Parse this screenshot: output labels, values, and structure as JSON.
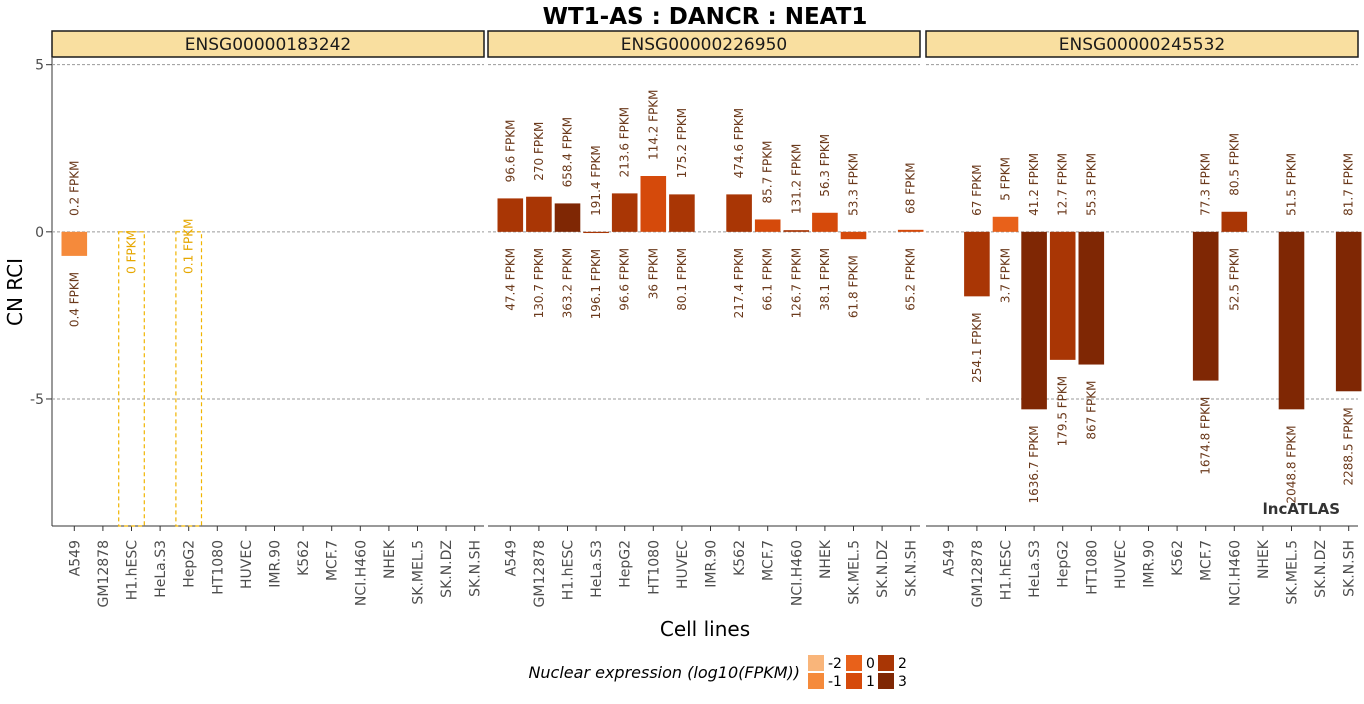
{
  "chart_data": {
    "type": "bar",
    "title": "WT1-AS : DANCR : NEAT1",
    "xlabel": "Cell lines",
    "ylabel": "CN RCI",
    "ylim": [
      -8.8,
      5.2
    ],
    "yticks": [
      5,
      0,
      -5
    ],
    "grid": "dashed horizontal at y ticks",
    "categories": [
      "A549",
      "GM12878",
      "H1.hESC",
      "HeLa.S3",
      "HepG2",
      "HT1080",
      "HUVEC",
      "IMR.90",
      "K562",
      "MCF.7",
      "NCI.H460",
      "NHEK",
      "SK.MEL.5",
      "SK.N.DZ",
      "SK.N.SH"
    ],
    "color_scale": {
      "-2": "#f9b57a",
      "-1": "#f58a3b",
      "0": "#e8611a",
      "1": "#d54a0b",
      "2": "#a93605",
      "3": "#7f2704"
    },
    "facets": [
      {
        "label": "ENSG00000183242",
        "bars": [
          {
            "category": "A549",
            "value": -0.72,
            "top_label": "0.2 FPKM",
            "bottom_label": "0.4 FPKM",
            "level": -1,
            "style": "solid"
          },
          {
            "category": "H1.hESC",
            "value": -8.8,
            "top_label": "0 FPKM",
            "level": -2,
            "style": "dashed"
          },
          {
            "category": "HepG2",
            "value": -8.8,
            "top_label": "0.1 FPKM",
            "level": -2,
            "style": "dashed"
          }
        ]
      },
      {
        "label": "ENSG00000226950",
        "bars": [
          {
            "category": "A549",
            "value": 1.0,
            "top_label": "96.6 FPKM",
            "bottom_label": "47.4 FPKM",
            "level": 2,
            "style": "solid"
          },
          {
            "category": "GM12878",
            "value": 1.05,
            "top_label": "270 FPKM",
            "bottom_label": "130.7 FPKM",
            "level": 2,
            "style": "solid"
          },
          {
            "category": "H1.hESC",
            "value": 0.85,
            "top_label": "658.4 FPKM",
            "bottom_label": "363.2 FPKM",
            "level": 3,
            "style": "solid"
          },
          {
            "category": "HeLa.S3",
            "value": -0.03,
            "top_label": "191.4 FPKM",
            "bottom_label": "196.1 FPKM",
            "level": 2,
            "style": "solid"
          },
          {
            "category": "HepG2",
            "value": 1.15,
            "top_label": "213.6 FPKM",
            "bottom_label": "96.6 FPKM",
            "level": 2,
            "style": "solid"
          },
          {
            "category": "HT1080",
            "value": 1.67,
            "top_label": "114.2 FPKM",
            "bottom_label": "36 FPKM",
            "level": 1,
            "style": "solid"
          },
          {
            "category": "HUVEC",
            "value": 1.12,
            "top_label": "175.2 FPKM",
            "bottom_label": "80.1 FPKM",
            "level": 2,
            "style": "solid"
          },
          {
            "category": "K562",
            "value": 1.12,
            "top_label": "474.6 FPKM",
            "bottom_label": "217.4 FPKM",
            "level": 2,
            "style": "solid"
          },
          {
            "category": "MCF.7",
            "value": 0.37,
            "top_label": "85.7 FPKM",
            "bottom_label": "66.1 FPKM",
            "level": 1,
            "style": "solid"
          },
          {
            "category": "NCI.H460",
            "value": 0.05,
            "top_label": "131.2 FPKM",
            "bottom_label": "126.7 FPKM",
            "level": 2,
            "style": "solid"
          },
          {
            "category": "NHEK",
            "value": 0.57,
            "top_label": "56.3 FPKM",
            "bottom_label": "38.1 FPKM",
            "level": 1,
            "style": "solid"
          },
          {
            "category": "SK.MEL.5",
            "value": -0.22,
            "top_label": "53.3 FPKM",
            "bottom_label": "61.8 FPKM",
            "level": 1,
            "style": "solid"
          },
          {
            "category": "SK.N.SH",
            "value": 0.06,
            "top_label": "68 FPKM",
            "bottom_label": "65.2 FPKM",
            "level": 1,
            "style": "solid"
          }
        ]
      },
      {
        "label": "ENSG00000245532",
        "bars": [
          {
            "category": "GM12878",
            "value": -1.93,
            "top_label": "67 FPKM",
            "bottom_label": "254.1 FPKM",
            "level": 2,
            "style": "solid"
          },
          {
            "category": "H1.hESC",
            "value": 0.45,
            "top_label": "5 FPKM",
            "bottom_label": "3.7 FPKM",
            "level": 0,
            "style": "solid"
          },
          {
            "category": "HeLa.S3",
            "value": -5.31,
            "top_label": "41.2 FPKM",
            "bottom_label": "1636.7 FPKM",
            "level": 3,
            "style": "solid"
          },
          {
            "category": "HepG2",
            "value": -3.83,
            "top_label": "12.7 FPKM",
            "bottom_label": "179.5 FPKM",
            "level": 2,
            "style": "solid"
          },
          {
            "category": "HT1080",
            "value": -3.97,
            "top_label": "55.3 FPKM",
            "bottom_label": "867 FPKM",
            "level": 3,
            "style": "solid"
          },
          {
            "category": "MCF.7",
            "value": -4.45,
            "top_label": "77.3 FPKM",
            "bottom_label": "1674.8 FPKM",
            "level": 3,
            "style": "solid"
          },
          {
            "category": "NCI.H460",
            "value": 0.6,
            "top_label": "80.5 FPKM",
            "bottom_label": "52.5 FPKM",
            "level": 2,
            "style": "solid"
          },
          {
            "category": "SK.MEL.5",
            "value": -5.31,
            "top_label": "51.5 FPKM",
            "bottom_label": "2048.8 FPKM",
            "level": 3,
            "style": "solid"
          },
          {
            "category": "SK.N.SH",
            "value": -4.77,
            "top_label": "81.7 FPKM",
            "bottom_label": "2288.5 FPKM",
            "level": 3,
            "style": "solid"
          }
        ]
      }
    ],
    "legend": {
      "title": "Nuclear expression (log10(FPKM))",
      "position": "bottom",
      "keys": [
        {
          "label": "-2",
          "level": -2
        },
        {
          "label": "-1",
          "level": -1
        },
        {
          "label": "0",
          "level": 0
        },
        {
          "label": "1",
          "level": 1
        },
        {
          "label": "2",
          "level": 2
        },
        {
          "label": "3",
          "level": 3
        }
      ]
    },
    "watermark": "lncATLAS"
  }
}
